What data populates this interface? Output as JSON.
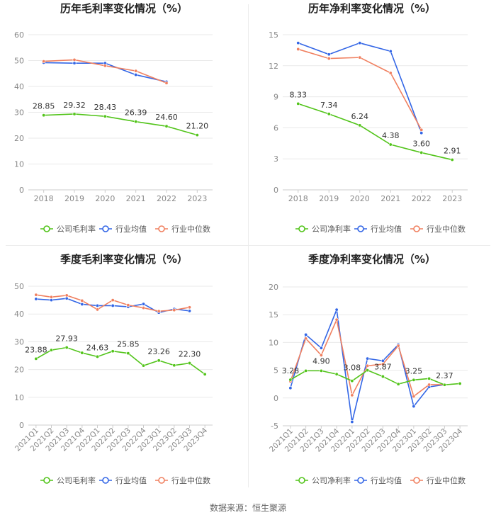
{
  "page": {
    "source": "数据来源：恒生聚源"
  },
  "colors": {
    "company": "#52c41a",
    "industry_avg": "#3366e6",
    "industry_median": "#f08060",
    "grid": "#e9e9e9",
    "axis_text": "#888888",
    "label_text": "#333333"
  },
  "chart_data": [
    {
      "type": "line",
      "title": "历年毛利率变化情况（%）",
      "categories": [
        "2018",
        "2019",
        "2020",
        "2021",
        "2022",
        "2023"
      ],
      "ylim": [
        0,
        60
      ],
      "yticks": [
        0,
        10,
        20,
        30,
        40,
        50,
        60
      ],
      "grid": true,
      "legend_position": "bottom",
      "series": [
        {
          "name": "公司毛利率",
          "color": "#52c41a",
          "values": [
            28.85,
            29.32,
            28.43,
            26.39,
            24.6,
            21.2
          ],
          "labels": [
            "28.85",
            "29.32",
            "28.43",
            "26.39",
            "24.60",
            "21.20"
          ]
        },
        {
          "name": "行业均值",
          "color": "#3366e6",
          "values": [
            49.2,
            49.0,
            49.0,
            44.5,
            41.8,
            null
          ]
        },
        {
          "name": "行业中位数",
          "color": "#f08060",
          "values": [
            49.7,
            50.3,
            48.0,
            46.0,
            41.3,
            null
          ]
        }
      ]
    },
    {
      "type": "line",
      "title": "历年净利率变化情况（%）",
      "categories": [
        "2018",
        "2019",
        "2020",
        "2021",
        "2022",
        "2023"
      ],
      "ylim": [
        0,
        15
      ],
      "yticks": [
        0,
        3,
        6,
        9,
        12,
        15
      ],
      "grid": true,
      "legend_position": "bottom",
      "series": [
        {
          "name": "公司净利率",
          "color": "#52c41a",
          "values": [
            8.33,
            7.34,
            6.24,
            4.38,
            3.6,
            2.91
          ],
          "labels": [
            "8.33",
            "7.34",
            "6.24",
            "4.38",
            "3.60",
            "2.91"
          ]
        },
        {
          "name": "行业均值",
          "color": "#3366e6",
          "values": [
            14.2,
            13.1,
            14.2,
            13.4,
            5.5,
            null
          ]
        },
        {
          "name": "行业中位数",
          "color": "#f08060",
          "values": [
            13.6,
            12.7,
            12.8,
            11.3,
            5.8,
            null
          ]
        }
      ]
    },
    {
      "type": "line",
      "title": "季度毛利率变化情况（%）",
      "categories": [
        "2021Q1",
        "2021Q2",
        "2021Q3",
        "2021Q4",
        "2022Q1",
        "2022Q2",
        "2022Q3",
        "2022Q4",
        "2023Q1",
        "2023Q2",
        "2023Q3",
        "2023Q4"
      ],
      "ylim": [
        0,
        50
      ],
      "yticks": [
        0,
        10,
        20,
        30,
        40,
        50
      ],
      "grid": true,
      "legend_position": "bottom",
      "series": [
        {
          "name": "公司毛利率",
          "color": "#52c41a",
          "values": [
            23.88,
            27.0,
            27.93,
            26.0,
            24.63,
            26.6,
            25.85,
            21.4,
            23.26,
            21.5,
            22.3,
            18.3
          ],
          "labels": [
            "23.88",
            "",
            "27.93",
            "",
            "24.63",
            "",
            "25.85",
            "",
            "23.26",
            "",
            "22.30",
            ""
          ]
        },
        {
          "name": "行业均值",
          "color": "#3366e6",
          "values": [
            45.4,
            45.0,
            45.6,
            43.5,
            43.0,
            43.0,
            42.6,
            43.6,
            40.5,
            41.8,
            41.1,
            null
          ]
        },
        {
          "name": "行业中位数",
          "color": "#f08060",
          "values": [
            46.9,
            46.1,
            46.7,
            44.8,
            41.6,
            45.0,
            43.2,
            42.2,
            41.0,
            41.4,
            42.4,
            null
          ]
        }
      ]
    },
    {
      "type": "line",
      "title": "季度净利率变化情况（%）",
      "categories": [
        "2021Q1",
        "2021Q2",
        "2021Q3",
        "2021Q4",
        "2022Q1",
        "2022Q2",
        "2022Q3",
        "2022Q4",
        "2023Q1",
        "2023Q2",
        "2023Q3",
        "2023Q4"
      ],
      "ylim": [
        -5,
        20
      ],
      "yticks": [
        -5,
        0,
        5,
        10,
        15,
        20
      ],
      "grid": true,
      "legend_position": "bottom",
      "series": [
        {
          "name": "公司净利率",
          "color": "#52c41a",
          "values": [
            3.28,
            4.9,
            4.9,
            4.3,
            3.08,
            5.0,
            3.87,
            2.5,
            3.25,
            3.5,
            2.37,
            2.6
          ],
          "labels": [
            "3.28",
            "",
            "4.90",
            "",
            "3.08",
            "",
            "3.87",
            "",
            "3.25",
            "",
            "2.37",
            ""
          ]
        },
        {
          "name": "行业均值",
          "color": "#3366e6",
          "values": [
            1.8,
            11.4,
            9.0,
            15.9,
            -4.3,
            7.1,
            6.7,
            9.6,
            -1.5,
            2.0,
            2.4,
            null
          ]
        },
        {
          "name": "行业中位数",
          "color": "#f08060",
          "values": [
            3.0,
            10.7,
            7.7,
            14.1,
            0.5,
            5.8,
            6.1,
            9.4,
            0.3,
            2.4,
            2.4,
            null
          ]
        }
      ]
    }
  ]
}
